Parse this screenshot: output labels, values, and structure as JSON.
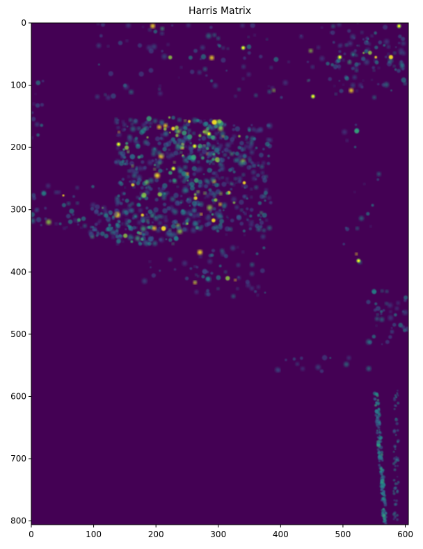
{
  "chart_data": {
    "type": "heatmap",
    "title": "Harris Matrix",
    "xlabel": "",
    "ylabel": "",
    "xlim": [
      0,
      605
    ],
    "ylim": [
      806,
      0
    ],
    "x_ticks": [
      "0",
      "100",
      "200",
      "300",
      "400",
      "500",
      "600"
    ],
    "y_ticks": [
      "0",
      "100",
      "200",
      "300",
      "400",
      "500",
      "600",
      "700",
      "800"
    ],
    "grid": false,
    "colormap": "viridis",
    "background_color": "#440154",
    "highlight_colors": [
      "#31688e",
      "#21918c",
      "#35b779",
      "#90d743",
      "#fde725"
    ]
  }
}
